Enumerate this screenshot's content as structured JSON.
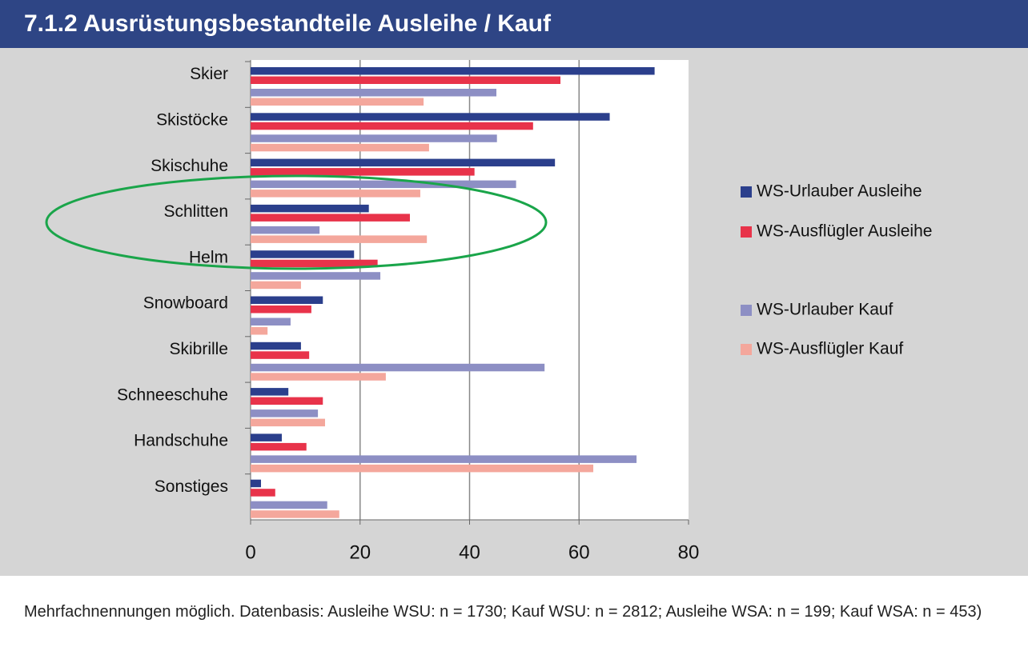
{
  "chart_data": {
    "type": "barh",
    "title": "7.1.2 Ausrüstungsbestandteile Ausleihe / Kauf",
    "categories": [
      "Skier",
      "Skistöcke",
      "Skischuhe",
      "Schlitten",
      "Helm",
      "Snowboard",
      "Skibrille",
      "Schneeschuhe",
      "Handschuhe",
      "Sonstiges"
    ],
    "series": [
      {
        "name": "WS-Urlauber Ausleihe",
        "color": "#2b3f8c",
        "values": [
          73.8,
          65.6,
          55.6,
          21.6,
          18.9,
          13.2,
          9.2,
          6.9,
          5.7,
          1.9
        ]
      },
      {
        "name": "WS-Ausflügler Ausleihe",
        "color": "#e8334a",
        "values": [
          56.6,
          51.6,
          40.9,
          29.1,
          23.2,
          11.1,
          10.7,
          13.2,
          10.2,
          4.5
        ]
      },
      {
        "name": "WS-Urlauber Kauf",
        "color": "#8d8fc4",
        "values": [
          44.9,
          45,
          48.5,
          12.6,
          23.7,
          7.3,
          53.7,
          12.3,
          70.5,
          14
        ]
      },
      {
        "name": "WS-Ausflügler Kauf",
        "color": "#f4a79c",
        "values": [
          31.6,
          32.6,
          31,
          32.2,
          9.2,
          3.1,
          24.7,
          13.6,
          62.6,
          16.2
        ]
      }
    ],
    "xlim": [
      0,
      80
    ],
    "xticks": [
      0,
      20,
      40,
      60,
      80
    ],
    "grid": true,
    "footnote": "Mehrfachnennungen möglich. Datenbasis: Ausleihe WSU: n = 1730; Kauf WSU: n = 2812; Ausleihe WSA: n = 199; Kauf WSA: n = 453)"
  }
}
